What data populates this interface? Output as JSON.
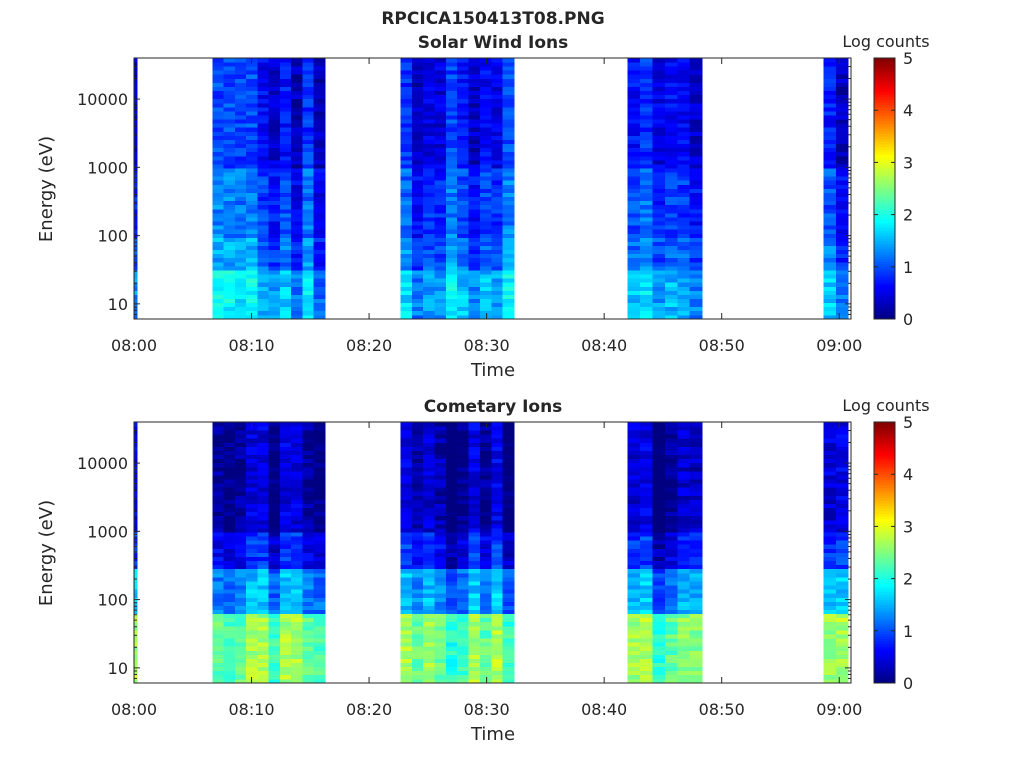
{
  "figure": {
    "title": "RPCICA150413T08.PNG"
  },
  "colors": {
    "background": "#ffffff",
    "axis": "#262626",
    "colormap": "jet"
  },
  "chart_data": [
    {
      "type": "heatmap",
      "title": "Solar Wind Ions",
      "xlabel": "Time",
      "ylabel": "Energy (eV)",
      "y_scale": "log",
      "xlim": [
        "08:00",
        "09:01"
      ],
      "ylim": [
        6,
        40000
      ],
      "x_tick_labels": [
        "08:00",
        "08:10",
        "08:20",
        "08:30",
        "08:40",
        "08:50",
        "09:00"
      ],
      "y_tick_labels": [
        "10",
        "100",
        "1000",
        "10000"
      ],
      "colorbar": {
        "label": "Log counts",
        "range": [
          0,
          5
        ],
        "ticks": [
          "0",
          "1",
          "2",
          "3",
          "4",
          "5"
        ]
      },
      "data_intervals": [
        {
          "start": "08:00",
          "end": "08:00:15"
        },
        {
          "start": "08:06:40",
          "end": "08:16:15"
        },
        {
          "start": "08:22:40",
          "end": "08:32:20"
        },
        {
          "start": "08:42:00",
          "end": "08:48:20"
        },
        {
          "start": "08:58:40",
          "end": "09:00:45"
        }
      ],
      "typical_log_counts": [
        {
          "energy_range_eV": [
            1000,
            40000
          ],
          "log_counts": 0.6
        },
        {
          "energy_range_eV": [
            100,
            1000
          ],
          "log_counts": 0.9
        },
        {
          "energy_range_eV": [
            30,
            100
          ],
          "log_counts": 1.1
        },
        {
          "energy_range_eV": [
            6,
            30
          ],
          "log_counts": 1.5
        }
      ]
    },
    {
      "type": "heatmap",
      "title": "Cometary Ions",
      "xlabel": "Time",
      "ylabel": "Energy (eV)",
      "y_scale": "log",
      "xlim": [
        "08:00",
        "09:01"
      ],
      "ylim": [
        6,
        40000
      ],
      "x_tick_labels": [
        "08:00",
        "08:10",
        "08:20",
        "08:30",
        "08:40",
        "08:50",
        "09:00"
      ],
      "y_tick_labels": [
        "10",
        "100",
        "1000",
        "10000"
      ],
      "colorbar": {
        "label": "Log counts",
        "range": [
          0,
          5
        ],
        "ticks": [
          "0",
          "1",
          "2",
          "3",
          "4",
          "5"
        ]
      },
      "data_intervals": [
        {
          "start": "08:00",
          "end": "08:00:15"
        },
        {
          "start": "08:06:40",
          "end": "08:16:15"
        },
        {
          "start": "08:22:40",
          "end": "08:32:20"
        },
        {
          "start": "08:42:00",
          "end": "08:48:20"
        },
        {
          "start": "08:58:40",
          "end": "09:00:45"
        }
      ],
      "typical_log_counts": [
        {
          "energy_range_eV": [
            1000,
            40000
          ],
          "log_counts": 0.2
        },
        {
          "energy_range_eV": [
            300,
            1000
          ],
          "log_counts": 0.6
        },
        {
          "energy_range_eV": [
            60,
            300
          ],
          "log_counts": 1.3
        },
        {
          "energy_range_eV": [
            6,
            60
          ],
          "log_counts": 2.4
        }
      ]
    }
  ]
}
